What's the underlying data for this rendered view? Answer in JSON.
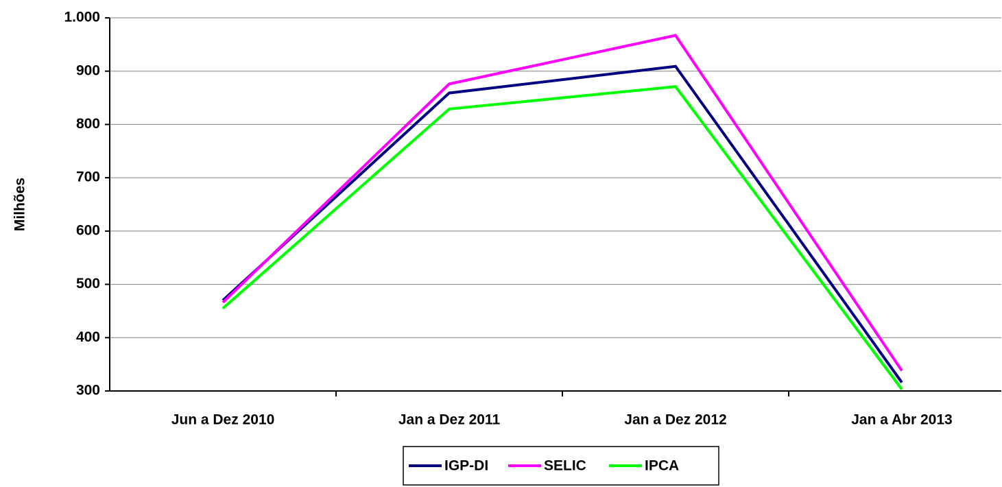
{
  "chart_data": {
    "type": "line",
    "y_label": "Milhões",
    "categories": [
      "Jun a Dez 2010",
      "Jan a Dez 2011",
      "Jan a Dez 2012",
      "Jan a Abr 2013"
    ],
    "series": [
      {
        "name": "IGP-DI",
        "color": "#000080",
        "values": [
          470,
          859,
          909,
          316
        ]
      },
      {
        "name": "SELIC",
        "color": "#ff00ff",
        "values": [
          466,
          876,
          967,
          338
        ]
      },
      {
        "name": "IPCA",
        "color": "#00ff00",
        "values": [
          455,
          829,
          871,
          303
        ]
      }
    ],
    "ylim": [
      300,
      1000
    ],
    "yticks": [
      300,
      400,
      500,
      600,
      700,
      800,
      900,
      {
        "value": 1000,
        "label": "1.000"
      }
    ],
    "grid": true,
    "legend": "bottom"
  }
}
